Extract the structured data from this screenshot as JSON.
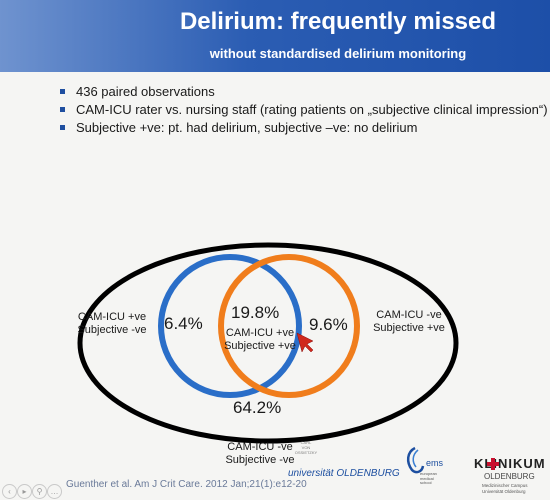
{
  "header": {
    "title": "Delirium: frequently missed",
    "subtitle": "without standardised delirium monitoring"
  },
  "bullets": [
    "436 paired observations",
    "CAM-ICU rater vs. nursing staff (rating patients on „subjective clinical impression“)",
    "Subjective +ve: pt. had delirium, subjective –ve: no delirium"
  ],
  "venn": {
    "left_value": "6.4%",
    "center_value": "19.8%",
    "right_value": "9.6%",
    "bottom_value": "64.2%",
    "left_label": [
      "CAM-ICU +ve",
      "Subjective -ve"
    ],
    "center_label": [
      "CAM-ICU +ve",
      "Subjective +ve"
    ],
    "right_label": [
      "CAM-ICU -ve",
      "Subjective +ve"
    ],
    "bottom_label": [
      "CAM-ICU -ve",
      "Subjective -ve"
    ],
    "colors": {
      "cam_icu": "#2a6ec8",
      "subjective": "#f07d1c",
      "outer": "#000000"
    }
  },
  "citation": "Guenther et al. Am J Crit Care. 2012 Jan;21(1):e12-20",
  "logos": {
    "university_small": [
      "CARL",
      "VON",
      "OSSIETZKY"
    ],
    "university_text": "universität OLDENBURG",
    "ems": "ems",
    "ems_small": [
      "european",
      "medical",
      "school"
    ],
    "klinikum": "KLINIKUM",
    "klinikum_sub": "OLDENBURG",
    "klinikum_small": [
      "Medizinischer Campus",
      "Universität Oldenburg"
    ]
  },
  "toolbar": [
    "‹",
    "▸",
    "⚲",
    "…"
  ]
}
